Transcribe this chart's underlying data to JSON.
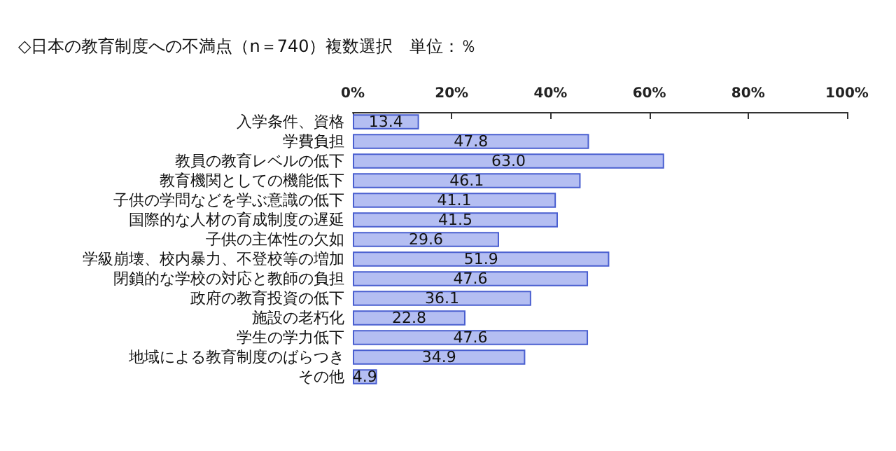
{
  "chart_data": {
    "type": "bar",
    "orientation": "horizontal",
    "title": "◇日本の教育制度への不満点（n＝740）複数選択　単位：％",
    "categories": [
      "入学条件、資格",
      "学費負担",
      "教員の教育レベルの低下",
      "教育機関としての機能低下",
      "子供の学問などを学ぶ意識の低下",
      "国際的な人材の育成制度の遅延",
      "子供の主体性の欠如",
      "学級崩壊、校内暴力、不登校等の増加",
      "閉鎖的な学校の対応と教師の負担",
      "政府の教育投資の低下",
      "施設の老朽化",
      "学生の学力低下",
      "地域による教育制度のばらつき",
      "その他"
    ],
    "values": [
      13.4,
      47.8,
      63.0,
      46.1,
      41.1,
      41.5,
      29.6,
      51.9,
      47.6,
      36.1,
      22.8,
      47.6,
      34.9,
      4.9
    ],
    "value_labels": [
      "13.4",
      "47.8",
      "63.0",
      "46.1",
      "41.1",
      "41.5",
      "29.6",
      "51.9",
      "47.6",
      "36.1",
      "22.8",
      "47.6",
      "34.9",
      "4.9"
    ],
    "color": "#b4bef2",
    "xlim": [
      0,
      100
    ],
    "xticks": [
      {
        "value": 0,
        "label": "0%"
      },
      {
        "value": 20,
        "label": "20%"
      },
      {
        "value": 40,
        "label": "40%"
      },
      {
        "value": 60,
        "label": "60%"
      },
      {
        "value": 80,
        "label": "80%"
      },
      {
        "value": 100,
        "label": "100%"
      }
    ],
    "grid": false
  }
}
